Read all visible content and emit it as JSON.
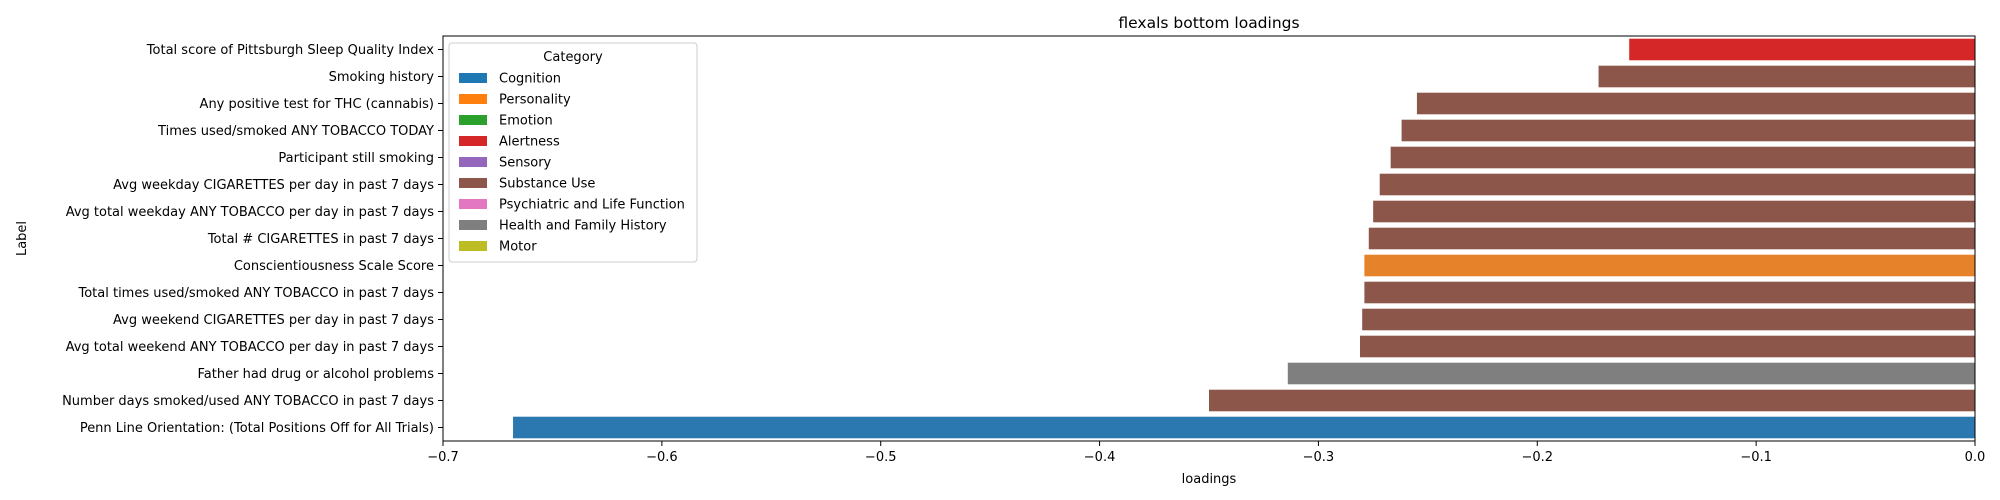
{
  "chart_data": {
    "type": "bar",
    "orientation": "horizontal",
    "title": "flexals bottom loadings",
    "xlabel": "loadings",
    "ylabel": "Label",
    "xlim": [
      -0.7,
      0.0
    ],
    "xticks": [
      -0.7,
      -0.6,
      -0.5,
      -0.4,
      -0.3,
      -0.2,
      -0.1,
      0.0
    ],
    "xtick_labels": [
      "−0.7",
      "−0.6",
      "−0.5",
      "−0.4",
      "−0.3",
      "−0.2",
      "−0.1",
      "0.0"
    ],
    "legend": {
      "title": "Category",
      "placement": "upper-left",
      "entries": [
        {
          "name": "Cognition",
          "color": "#1f77b4"
        },
        {
          "name": "Personality",
          "color": "#ff7f0e"
        },
        {
          "name": "Emotion",
          "color": "#2ca02c"
        },
        {
          "name": "Alertness",
          "color": "#d62728"
        },
        {
          "name": "Sensory",
          "color": "#9467bd"
        },
        {
          "name": "Substance Use",
          "color": "#8c564b"
        },
        {
          "name": "Psychiatric and Life Function",
          "color": "#e377c2"
        },
        {
          "name": "Health and Family History",
          "color": "#7f7f7f"
        },
        {
          "name": "Motor",
          "color": "#bcbd22"
        }
      ]
    },
    "bars": [
      {
        "label": "Total score of Pittsburgh Sleep Quality Index",
        "value": -0.158,
        "category": "Alertness",
        "color": "#d62728"
      },
      {
        "label": "Smoking history",
        "value": -0.172,
        "category": "Substance Use",
        "color": "#8c564b"
      },
      {
        "label": "Any positive test for THC (cannabis)",
        "value": -0.255,
        "category": "Substance Use",
        "color": "#8c564b"
      },
      {
        "label": "Times used/smoked ANY TOBACCO TODAY",
        "value": -0.262,
        "category": "Substance Use",
        "color": "#8c564b"
      },
      {
        "label": "Participant still smoking",
        "value": -0.267,
        "category": "Substance Use",
        "color": "#8c564b"
      },
      {
        "label": "Avg weekday CIGARETTES per day in past 7 days",
        "value": -0.272,
        "category": "Substance Use",
        "color": "#8c564b"
      },
      {
        "label": "Avg total weekday ANY TOBACCO per day in past 7 days",
        "value": -0.275,
        "category": "Substance Use",
        "color": "#8c564b"
      },
      {
        "label": "Total # CIGARETTES in past 7 days",
        "value": -0.277,
        "category": "Substance Use",
        "color": "#8c564b"
      },
      {
        "label": "Conscientiousness Scale Score",
        "value": -0.279,
        "category": "Personality",
        "color": "#e6822a"
      },
      {
        "label": "Total times used/smoked ANY TOBACCO in past 7 days",
        "value": -0.279,
        "category": "Substance Use",
        "color": "#8c564b"
      },
      {
        "label": "Avg weekend CIGARETTES per day in past 7 days",
        "value": -0.28,
        "category": "Substance Use",
        "color": "#8c564b"
      },
      {
        "label": "Avg total weekend ANY TOBACCO per day in past 7 days",
        "value": -0.281,
        "category": "Substance Use",
        "color": "#8c564b"
      },
      {
        "label": "Father had drug or alcohol problems",
        "value": -0.314,
        "category": "Health and Family History",
        "color": "#7f7f7f"
      },
      {
        "label": "Number days smoked/used ANY TOBACCO in past 7 days",
        "value": -0.35,
        "category": "Substance Use",
        "color": "#8c564b"
      },
      {
        "label": "Penn Line Orientation: (Total Positions Off for All Trials)",
        "value": -0.668,
        "category": "Cognition",
        "color": "#2b78b0"
      }
    ]
  }
}
